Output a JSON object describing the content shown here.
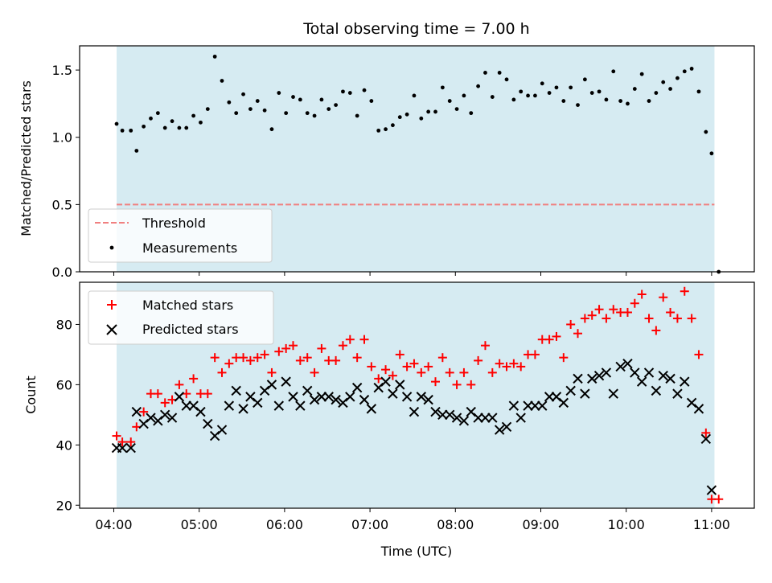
{
  "title": "Total observing time = 7.00 h",
  "chart_data": [
    {
      "type": "scatter",
      "ylabel": "Matched/Predicted stars",
      "xlim": [
        "03:36",
        "11:30"
      ],
      "ylim": [
        0,
        1.68
      ],
      "x_ticks": [
        "04:00",
        "05:00",
        "06:00",
        "07:00",
        "08:00",
        "09:00",
        "10:00",
        "11:00"
      ],
      "y_ticks": [
        "0.0",
        "0.5",
        "1.0",
        "1.5"
      ],
      "shaded_interval": [
        "04:02",
        "11:02"
      ],
      "shade_color": "#add8e6",
      "legend_placement": "lower-left",
      "threshold": {
        "name": "Threshold",
        "value": 0.5,
        "x_range": [
          "04:02",
          "11:02"
        ],
        "color": "#f08080",
        "style": "dashed"
      },
      "series": [
        {
          "name": "Measurements",
          "color": "#000000",
          "marker": "dot",
          "x": [
            "04:02",
            "04:06",
            "04:12",
            "04:16",
            "04:21",
            "04:26",
            "04:31",
            "04:36",
            "04:41",
            "04:46",
            "04:51",
            "04:56",
            "05:01",
            "05:06",
            "05:11",
            "05:16",
            "05:21",
            "05:26",
            "05:31",
            "05:36",
            "05:41",
            "05:46",
            "05:51",
            "05:56",
            "06:01",
            "06:06",
            "06:11",
            "06:16",
            "06:21",
            "06:26",
            "06:31",
            "06:36",
            "06:41",
            "06:46",
            "06:51",
            "06:56",
            "07:01",
            "07:06",
            "07:11",
            "07:16",
            "07:21",
            "07:26",
            "07:31",
            "07:36",
            "07:41",
            "07:46",
            "07:51",
            "07:56",
            "08:01",
            "08:06",
            "08:11",
            "08:16",
            "08:21",
            "08:26",
            "08:31",
            "08:36",
            "08:41",
            "08:46",
            "08:51",
            "08:56",
            "09:01",
            "09:06",
            "09:11",
            "09:16",
            "09:21",
            "09:26",
            "09:31",
            "09:36",
            "09:41",
            "09:46",
            "09:51",
            "09:56",
            "10:01",
            "10:06",
            "10:11",
            "10:16",
            "10:21",
            "10:26",
            "10:31",
            "10:36",
            "10:41",
            "10:46",
            "10:51",
            "10:56",
            "11:00",
            "11:05"
          ],
          "y": [
            1.1,
            1.05,
            1.05,
            0.9,
            1.08,
            1.14,
            1.18,
            1.07,
            1.12,
            1.07,
            1.07,
            1.16,
            1.11,
            1.21,
            1.6,
            1.42,
            1.26,
            1.18,
            1.32,
            1.21,
            1.27,
            1.2,
            1.06,
            1.33,
            1.18,
            1.3,
            1.28,
            1.18,
            1.16,
            1.28,
            1.21,
            1.24,
            1.34,
            1.33,
            1.16,
            1.35,
            1.27,
            1.05,
            1.06,
            1.09,
            1.15,
            1.17,
            1.31,
            1.14,
            1.19,
            1.19,
            1.37,
            1.27,
            1.21,
            1.31,
            1.18,
            1.38,
            1.48,
            1.3,
            1.48,
            1.43,
            1.28,
            1.34,
            1.31,
            1.31,
            1.4,
            1.33,
            1.37,
            1.27,
            1.37,
            1.24,
            1.43,
            1.33,
            1.34,
            1.28,
            1.49,
            1.27,
            1.25,
            1.36,
            1.47,
            1.27,
            1.33,
            1.41,
            1.36,
            1.44,
            1.49,
            1.51,
            1.34,
            1.04,
            0.88,
            0.0
          ]
        }
      ]
    },
    {
      "type": "scatter",
      "xlabel": "Time (UTC)",
      "ylabel": "Count",
      "xlim": [
        "03:36",
        "11:30"
      ],
      "ylim": [
        19,
        94
      ],
      "x_ticks": [
        "04:00",
        "05:00",
        "06:00",
        "07:00",
        "08:00",
        "09:00",
        "10:00",
        "11:00"
      ],
      "y_ticks": [
        "20",
        "40",
        "60",
        "80"
      ],
      "shaded_interval": [
        "04:02",
        "11:02"
      ],
      "shade_color": "#add8e6",
      "legend_placement": "upper-left",
      "series": [
        {
          "name": "Matched stars",
          "color": "#ff0000",
          "marker": "plus",
          "x": [
            "04:02",
            "04:06",
            "04:12",
            "04:16",
            "04:21",
            "04:26",
            "04:31",
            "04:36",
            "04:41",
            "04:46",
            "04:51",
            "04:56",
            "05:01",
            "05:06",
            "05:11",
            "05:16",
            "05:21",
            "05:26",
            "05:31",
            "05:36",
            "05:41",
            "05:46",
            "05:51",
            "05:56",
            "06:01",
            "06:06",
            "06:11",
            "06:16",
            "06:21",
            "06:26",
            "06:31",
            "06:36",
            "06:41",
            "06:46",
            "06:51",
            "06:56",
            "07:01",
            "07:06",
            "07:11",
            "07:16",
            "07:21",
            "07:26",
            "07:31",
            "07:36",
            "07:41",
            "07:46",
            "07:51",
            "07:56",
            "08:01",
            "08:06",
            "08:11",
            "08:16",
            "08:21",
            "08:26",
            "08:31",
            "08:36",
            "08:41",
            "08:46",
            "08:51",
            "08:56",
            "09:01",
            "09:06",
            "09:11",
            "09:16",
            "09:21",
            "09:26",
            "09:31",
            "09:36",
            "09:41",
            "09:46",
            "09:51",
            "09:56",
            "10:01",
            "10:06",
            "10:11",
            "10:16",
            "10:21",
            "10:26",
            "10:31",
            "10:36",
            "10:41",
            "10:46",
            "10:51",
            "10:56",
            "11:00",
            "11:05"
          ],
          "y": [
            43,
            41,
            41,
            46,
            51,
            57,
            57,
            54,
            55,
            60,
            57,
            62,
            57,
            57,
            69,
            64,
            67,
            69,
            69,
            68,
            69,
            70,
            64,
            71,
            72,
            73,
            68,
            69,
            64,
            72,
            68,
            68,
            73,
            75,
            69,
            75,
            66,
            62,
            65,
            63,
            70,
            66,
            67,
            64,
            66,
            61,
            69,
            64,
            60,
            64,
            60,
            68,
            73,
            64,
            67,
            66,
            67,
            66,
            70,
            70,
            75,
            75,
            76,
            69,
            80,
            77,
            82,
            83,
            85,
            82,
            85,
            84,
            84,
            87,
            90,
            82,
            78,
            89,
            84,
            82,
            91,
            82,
            70,
            44,
            22,
            22
          ]
        },
        {
          "name": "Predicted stars",
          "color": "#000000",
          "marker": "x",
          "x": [
            "04:02",
            "04:06",
            "04:12",
            "04:16",
            "04:21",
            "04:26",
            "04:31",
            "04:36",
            "04:41",
            "04:46",
            "04:51",
            "04:56",
            "05:01",
            "05:06",
            "05:11",
            "05:16",
            "05:21",
            "05:26",
            "05:31",
            "05:36",
            "05:41",
            "05:46",
            "05:51",
            "05:56",
            "06:01",
            "06:06",
            "06:11",
            "06:16",
            "06:21",
            "06:26",
            "06:31",
            "06:36",
            "06:41",
            "06:46",
            "06:51",
            "06:56",
            "07:01",
            "07:06",
            "07:11",
            "07:16",
            "07:21",
            "07:26",
            "07:31",
            "07:36",
            "07:41",
            "07:46",
            "07:51",
            "07:56",
            "08:01",
            "08:06",
            "08:11",
            "08:16",
            "08:21",
            "08:26",
            "08:31",
            "08:36",
            "08:41",
            "08:46",
            "08:51",
            "08:56",
            "09:01",
            "09:06",
            "09:11",
            "09:16",
            "09:21",
            "09:26",
            "09:31",
            "09:36",
            "09:41",
            "09:46",
            "09:51",
            "09:56",
            "10:01",
            "10:06",
            "10:11",
            "10:16",
            "10:21",
            "10:26",
            "10:31",
            "10:36",
            "10:41",
            "10:46",
            "10:51",
            "10:56",
            "11:00",
            "11:05"
          ],
          "y": [
            39,
            39,
            39,
            51,
            47,
            49,
            48,
            50,
            49,
            56,
            53,
            53,
            51,
            47,
            43,
            45,
            53,
            58,
            52,
            56,
            54,
            58,
            60,
            53,
            61,
            56,
            53,
            58,
            55,
            56,
            56,
            55,
            54,
            56,
            59,
            55,
            52,
            59,
            61,
            57,
            60,
            56,
            51,
            56,
            55,
            51,
            50,
            50,
            49,
            48,
            51,
            49,
            49,
            49,
            45,
            46,
            53,
            49,
            53,
            53,
            53,
            56,
            56,
            54,
            58,
            62,
            57,
            62,
            63,
            64,
            57,
            66,
            67,
            64,
            61,
            64,
            58,
            63,
            62,
            57,
            61,
            54,
            52,
            42,
            25,
            null
          ]
        }
      ]
    }
  ]
}
